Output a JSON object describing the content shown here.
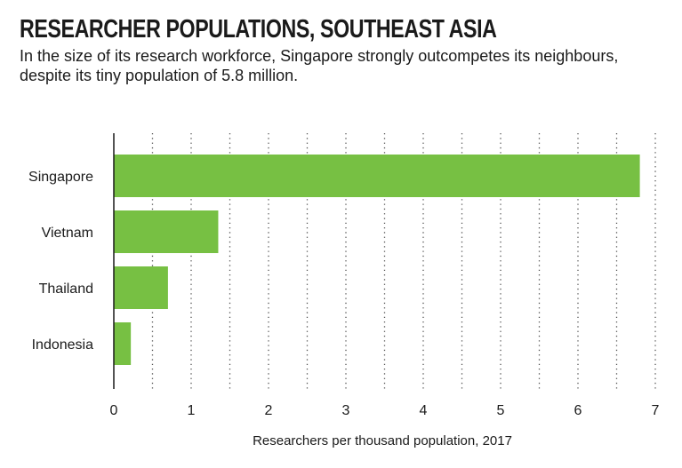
{
  "chart_data": {
    "type": "bar",
    "orientation": "horizontal",
    "title": "RESEARCHER POPULATIONS, SOUTHEAST ASIA",
    "subtitle": "In the size of its research workforce, Singapore strongly outcompetes its neigh­bours, despite its tiny population of 5.8 million.",
    "categories": [
      "Singapore",
      "Vietnam",
      "Thailand",
      "Indonesia"
    ],
    "values": [
      6.8,
      1.35,
      0.7,
      0.22
    ],
    "xlabel": "Researchers per thousand population, 2017",
    "ylabel": "",
    "xlim": [
      0,
      7
    ],
    "xticks": [
      0,
      1,
      2,
      3,
      4,
      5,
      6,
      7
    ],
    "grid": "vertical-dotted",
    "bar_color": "#77c043",
    "legend": "none"
  }
}
